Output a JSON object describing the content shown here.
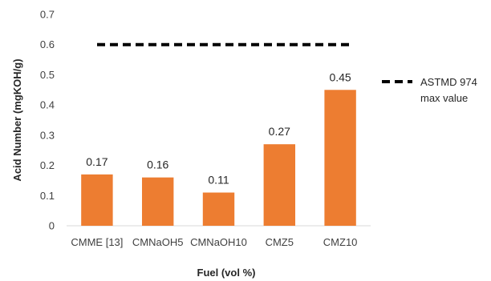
{
  "chart_data": {
    "type": "bar",
    "xlabel": "Fuel (vol %)",
    "ylabel": "Acid Number (mgKOH/g)",
    "categories": [
      "CMME [13]",
      "CMNaOH5",
      "CMNaOH10",
      "CMZ5",
      "CMZ10"
    ],
    "values": [
      0.17,
      0.16,
      0.11,
      0.27,
      0.45
    ],
    "data_labels": [
      "0.17",
      "0.16",
      "0.11",
      "0.27",
      "0.45"
    ],
    "ylim": [
      0,
      0.7
    ],
    "yticks": [
      0,
      0.1,
      0.2,
      0.3,
      0.4,
      0.5,
      0.6,
      0.7
    ],
    "ytick_labels": [
      "0",
      "0.1",
      "0.2",
      "0.3",
      "0.4",
      "0.5",
      "0.6",
      "0.7"
    ],
    "grid": false,
    "bar_color": "#ED7D31",
    "reference_line": {
      "value": 0.6,
      "style": "dashed",
      "color": "#000000",
      "legend_line1": "ASTMD 974",
      "legend_line2": "max value"
    },
    "legend_position": "right"
  }
}
